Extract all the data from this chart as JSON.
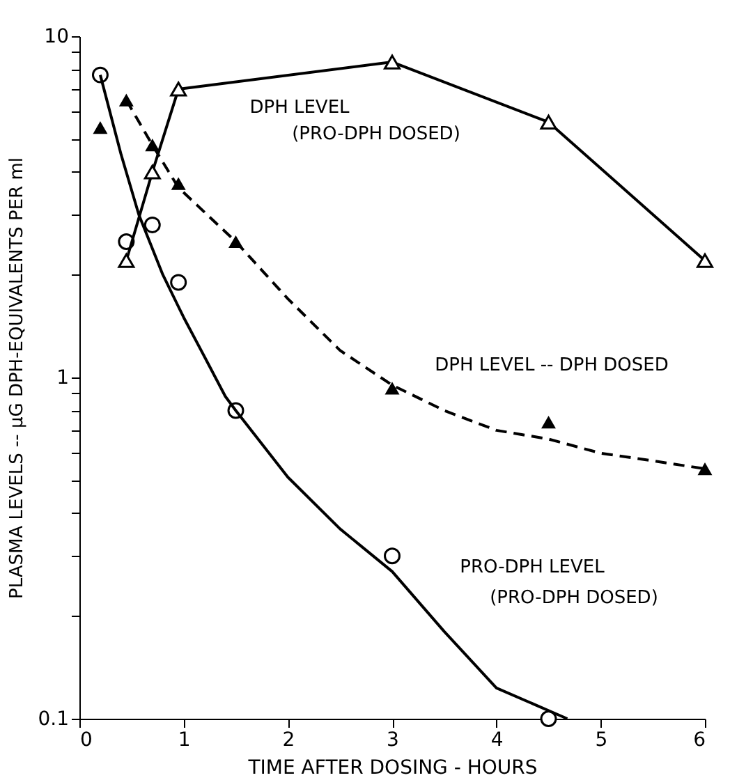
{
  "chart_data": {
    "type": "scatter",
    "xlabel": "TIME AFTER DOSING  -  HOURS",
    "ylabel": "PLASMA LEVELS -- μG DPH-EQUIVALENTS PER ml",
    "log": "y",
    "xlim": [
      0,
      6
    ],
    "xticks": [
      0,
      1,
      2,
      3,
      4,
      5,
      6
    ],
    "ylim": [
      0.1,
      10
    ],
    "yticks": [
      0.1,
      {
        "value": 0.2,
        "label": null
      },
      {
        "value": 0.3,
        "label": null
      },
      {
        "value": 0.4,
        "label": null
      },
      {
        "value": 0.5,
        "label": null
      },
      {
        "value": 0.6,
        "label": null
      },
      {
        "value": 0.7,
        "label": null
      },
      {
        "value": 0.8,
        "label": null
      },
      {
        "value": 0.9,
        "label": null
      },
      1,
      {
        "value": 2,
        "label": null
      },
      {
        "value": 3,
        "label": null
      },
      {
        "value": 4,
        "label": null
      },
      {
        "value": 5,
        "label": null
      },
      {
        "value": 6,
        "label": null
      },
      {
        "value": 7,
        "label": null
      },
      {
        "value": 8,
        "label": null
      },
      {
        "value": 9,
        "label": null
      },
      10
    ],
    "series": [
      {
        "type": "scatter",
        "marker": "circle",
        "color": "#000000",
        "x": [
          0.2,
          0.45,
          0.7,
          0.95,
          1.5,
          3,
          4.5
        ],
        "values": [
          7.7,
          2.5,
          2.8,
          1.9,
          0.8,
          0.3,
          0.1
        ]
      },
      {
        "type": "line",
        "marker": "none",
        "line_style": "solid",
        "color": "#000000",
        "x": [
          0.2,
          0.4,
          0.57,
          0.8,
          1.0,
          1.2,
          1.4,
          1.5,
          2,
          2.5,
          3,
          3.5,
          4,
          4.68
        ],
        "values": [
          7.7,
          4.5,
          3.0,
          2.0,
          1.5,
          1.15,
          0.88,
          0.8,
          0.51,
          0.36,
          0.27,
          0.18,
          0.123,
          0.1
        ]
      },
      {
        "type": "scatter",
        "marker": "triangle",
        "color": "#000000",
        "x": [
          0.2,
          0.45,
          0.7,
          0.95,
          1.5,
          3,
          4.5,
          6
        ],
        "values": [
          5.4,
          6.5,
          4.8,
          3.7,
          2.5,
          0.93,
          0.74,
          0.54
        ]
      },
      {
        "type": "line",
        "marker": "none",
        "line_style": "dashed",
        "color": "#000000",
        "x": [
          0.45,
          0.7,
          0.95,
          1.5,
          2,
          2.5,
          3,
          3.5,
          4,
          4.5,
          5,
          5.5,
          6
        ],
        "values": [
          6.5,
          4.8,
          3.6,
          2.5,
          1.7,
          1.2,
          0.95,
          0.8,
          0.7,
          0.66,
          0.6,
          0.57,
          0.54
        ]
      },
      {
        "type": "line",
        "marker": "triangle",
        "line_style": "solid",
        "color": "#000000",
        "x": [
          0.45,
          0.7,
          0.95,
          3,
          4.5,
          6
        ],
        "values": [
          2.2,
          4.0,
          7.0,
          8.4,
          5.6,
          2.2
        ]
      }
    ],
    "annotations": [
      "DPH LEVEL",
      "(PRO-DPH DOSED)",
      "DPH LEVEL -- DPH DOSED",
      "PRO-DPH LEVEL",
      "(PRO-DPH DOSED)"
    ]
  }
}
